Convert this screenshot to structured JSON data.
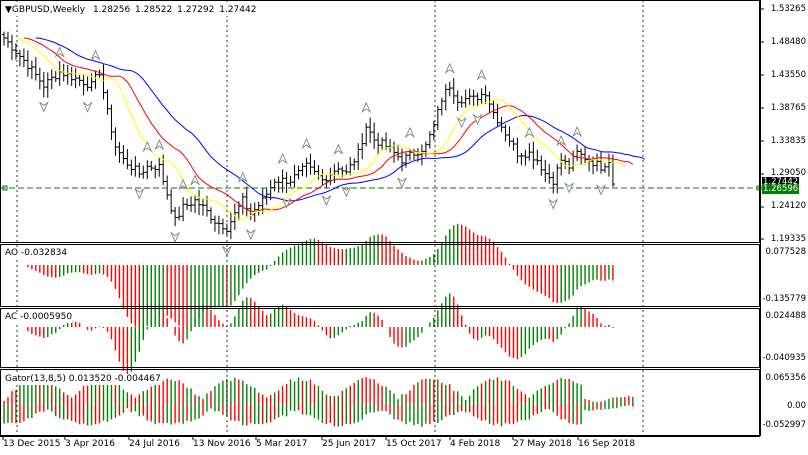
{
  "symbol_header": {
    "symbol": "GBPUSD,Weekly",
    "open": "1.28256",
    "high": "1.28522",
    "low": "1.27292",
    "close": "1.27442"
  },
  "price_axis": [
    "1.53265",
    "1.48480",
    "1.43550",
    "1.38765",
    "1.33835",
    "1.29050",
    "1.24120",
    "1.19335"
  ],
  "current_price_tags": [
    "1.27442",
    "1.26596"
  ],
  "ao_panel": {
    "title": "AO -0.032834",
    "scale": [
      "0.077528",
      "-0.135779"
    ]
  },
  "ac_panel": {
    "title": "AC -0.0005950",
    "scale": [
      "0.024488",
      "-0.040935"
    ]
  },
  "gator_panel": {
    "title": "Gator(13,8,5) 0.013520 -0.004467",
    "scale": [
      "0.065356",
      "0.00",
      "-0.052997"
    ]
  },
  "time_axis": [
    "13 Dec 2015",
    "3 Apr 2016",
    "24 Jul 2016",
    "13 Nov 2016",
    "5 Mar 2017",
    "25 Jun 2017",
    "15 Oct 2017",
    "4 Feb 2018",
    "27 May 2018",
    "16 Sep 2018"
  ],
  "colors": {
    "up_bar": "#008000",
    "down_bar": "#ff0000",
    "jaw": "#0000ff",
    "teeth": "#ff0000",
    "lips": "#ffff00",
    "grid_line": "#000000",
    "price_level_line": "#008000",
    "price_tag_bg": "#000000",
    "level_tag_bg": "#008000"
  },
  "chart_data": {
    "type": "line",
    "x": [
      "13 Dec 2015",
      "3 Apr 2016",
      "24 Jul 2016",
      "13 Nov 2016",
      "5 Mar 2017",
      "25 Jun 2017",
      "15 Oct 2017",
      "4 Feb 2018",
      "27 May 2018",
      "16 Sep 2018"
    ],
    "series": [
      {
        "values": [
          1.49,
          1.44,
          1.3,
          1.23,
          1.25,
          1.3,
          1.32,
          1.4,
          1.35,
          1.31
        ]
      }
    ],
    "ylim": [
      1.19335,
      1.53265
    ]
  }
}
